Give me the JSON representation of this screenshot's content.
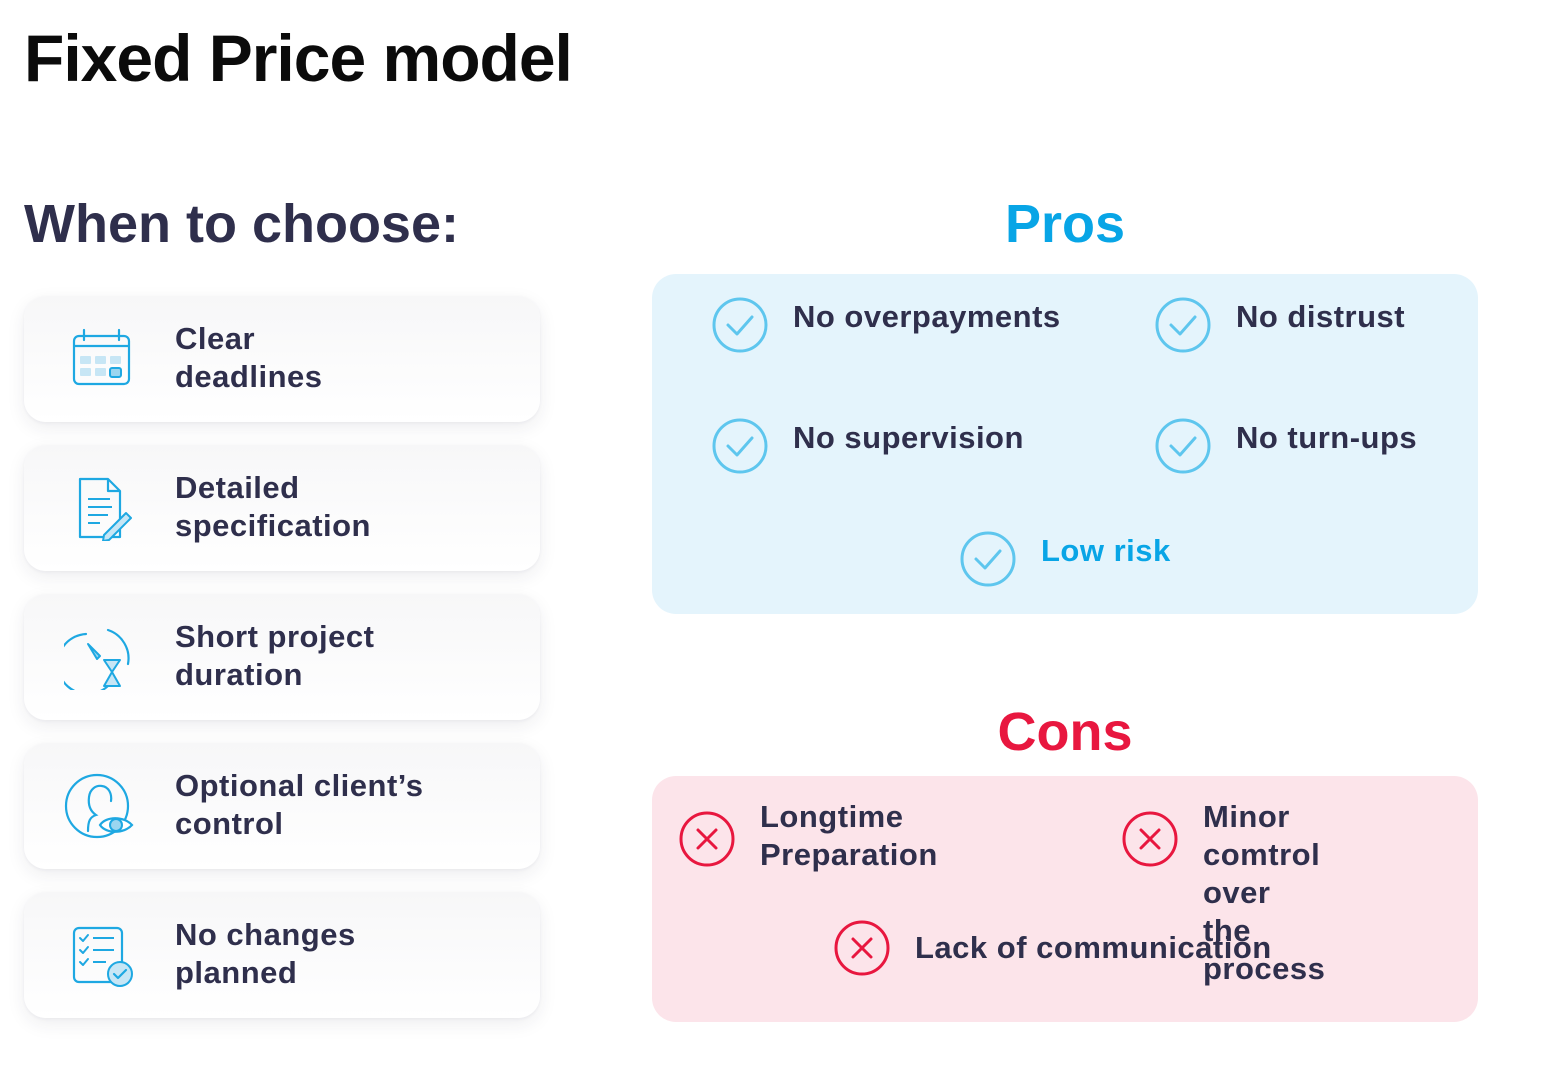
{
  "page": {
    "title": "Fixed Price model",
    "subtitle": "When to choose:"
  },
  "when_to_choose": [
    {
      "label": "Clear\ndeadlines",
      "icon": "calendar-icon"
    },
    {
      "label": "Detailed\nspecification",
      "icon": "document-edit-icon"
    },
    {
      "label": "Short project\nduration",
      "icon": "timer-hourglass-icon"
    },
    {
      "label": "Optional client’s\ncontrol",
      "icon": "user-eye-icon"
    },
    {
      "label": "No changes\nplanned",
      "icon": "checklist-icon"
    }
  ],
  "pros": {
    "heading": "Pros",
    "items": [
      {
        "label": "No overpayments",
        "icon": "check-circle-icon"
      },
      {
        "label": "No distrust",
        "icon": "check-circle-icon"
      },
      {
        "label": "No supervision",
        "icon": "check-circle-icon"
      },
      {
        "label": "No turn-ups",
        "icon": "check-circle-icon"
      },
      {
        "label": "Low risk",
        "icon": "check-circle-icon"
      }
    ]
  },
  "cons": {
    "heading": "Cons",
    "items": [
      {
        "label": "Longtime\nPreparation",
        "icon": "x-circle-icon"
      },
      {
        "label": "Minor comtrol\nover the process",
        "icon": "x-circle-icon"
      },
      {
        "label": "Lack of communication",
        "icon": "x-circle-icon"
      }
    ]
  },
  "colors": {
    "title": "#0b0b0b",
    "text": "#2f2f4c",
    "pros_accent": "#08a5e6",
    "pros_background": "#e4f4fc",
    "cons_accent": "#e8173f",
    "cons_background": "#fce4ea",
    "icon_blue": "#1ea8e2",
    "check_blue": "#5ec6ee"
  }
}
